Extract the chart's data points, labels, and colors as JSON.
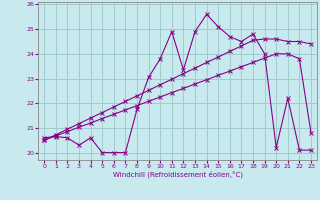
{
  "xlabel": "Windchill (Refroidissement éolien,°C)",
  "background_color": "#c8eaee",
  "grid_color": "#a0cccc",
  "line_color": "#880088",
  "x_values": [
    0,
    1,
    2,
    3,
    4,
    5,
    6,
    7,
    8,
    9,
    10,
    11,
    12,
    13,
    14,
    15,
    16,
    17,
    18,
    19,
    20,
    21,
    22,
    23
  ],
  "data_line": [
    20.6,
    20.65,
    20.6,
    20.3,
    20.6,
    20.0,
    20.0,
    20.0,
    21.75,
    23.05,
    23.8,
    24.9,
    23.35,
    24.9,
    25.6,
    25.1,
    24.7,
    24.5,
    24.8,
    24.0,
    20.2,
    22.2,
    20.1,
    20.1
  ],
  "trend_line1": [
    20.5,
    20.72,
    20.95,
    21.17,
    21.4,
    21.62,
    21.85,
    22.07,
    22.3,
    22.52,
    22.75,
    22.97,
    23.2,
    23.42,
    23.65,
    23.87,
    24.1,
    24.32,
    24.55,
    24.6,
    24.6,
    24.5,
    24.5,
    24.4
  ],
  "trend_line2": [
    20.5,
    20.68,
    20.85,
    21.03,
    21.2,
    21.38,
    21.55,
    21.73,
    21.9,
    22.08,
    22.25,
    22.43,
    22.6,
    22.78,
    22.95,
    23.13,
    23.3,
    23.48,
    23.65,
    23.83,
    24.0,
    24.0,
    23.8,
    20.8
  ],
  "ylim": [
    19.7,
    26.1
  ],
  "yticks": [
    20,
    21,
    22,
    23,
    24,
    25,
    26
  ],
  "xticks": [
    0,
    1,
    2,
    3,
    4,
    5,
    6,
    7,
    8,
    9,
    10,
    11,
    12,
    13,
    14,
    15,
    16,
    17,
    18,
    19,
    20,
    21,
    22,
    23
  ]
}
